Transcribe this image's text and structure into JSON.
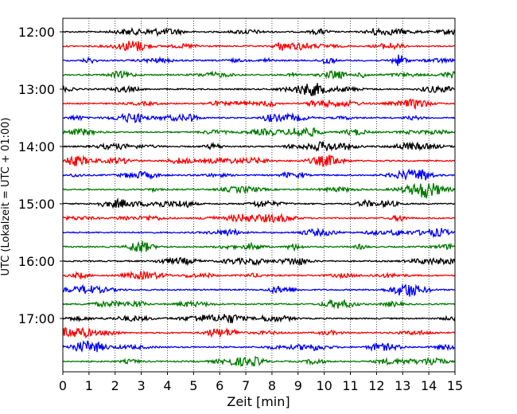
{
  "chart_data": {
    "type": "line",
    "title": "",
    "xlabel": "Zeit  [min]",
    "ylabel": "UTC (Lokalzeit = UTC + 01:00)",
    "xlim": [
      0,
      15
    ],
    "x_ticks": [
      "0",
      "1",
      "2",
      "3",
      "4",
      "5",
      "6",
      "7",
      "8",
      "9",
      "10",
      "11",
      "12",
      "13",
      "14",
      "15"
    ],
    "y_ticks": [
      "12:00",
      "13:00",
      "14:00",
      "15:00",
      "16:00",
      "17:00"
    ],
    "grid_x": true,
    "trace_interval_min": 15,
    "start": "12:00",
    "trace_count": 24,
    "trace_colors": [
      "#000000",
      "#ff0000",
      "#0000ff",
      "#007a00"
    ],
    "series_meta": "seismic helicorder traces, one row per 15-minute interval, colours cycle black/red/blue/green"
  }
}
